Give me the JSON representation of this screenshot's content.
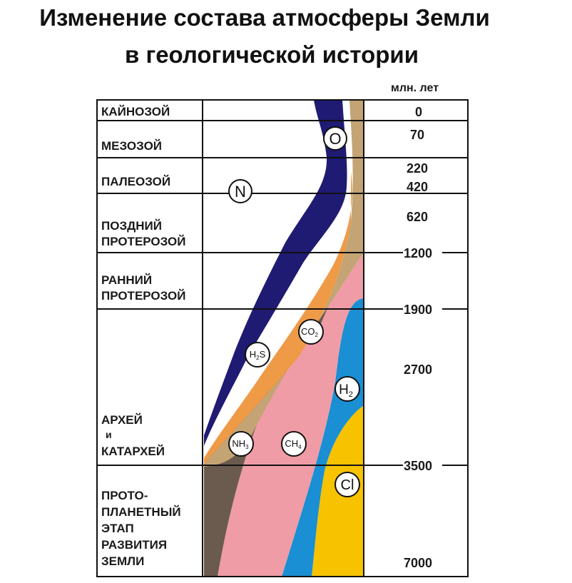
{
  "title": {
    "line1": "Изменение состава атмосферы Земли",
    "line2": "в геологической истории"
  },
  "unit_label": "млн. лет",
  "eras": [
    {
      "id": "kainozoi",
      "lines": [
        "КАЙНОЗОЙ"
      ]
    },
    {
      "id": "mezozoi",
      "lines": [
        "МЕЗОЗОЙ"
      ]
    },
    {
      "id": "paleozoi",
      "lines": [
        "ПАЛЕОЗОЙ"
      ]
    },
    {
      "id": "late-proterozoic",
      "lines": [
        "ПОЗДНИЙ",
        "ПРОТЕРОЗОЙ"
      ]
    },
    {
      "id": "early-proterozoic",
      "lines": [
        "РАННИЙ",
        "ПРОТЕРОЗОЙ"
      ]
    },
    {
      "id": "archean",
      "lines": [
        "АРХЕЙ",
        "и",
        "КАТАРХЕЙ"
      ]
    },
    {
      "id": "protoplanetary",
      "lines": [
        "ПРОТО-",
        "ПЛАНЕТНЫЙ",
        "ЭТАП",
        "РАЗВИТИЯ",
        "ЗЕМЛИ"
      ]
    }
  ],
  "ages": [
    "0",
    "70",
    "220",
    "420",
    "620",
    "1200",
    "1900",
    "2700",
    "3500",
    "7000"
  ],
  "gases": [
    {
      "id": "o",
      "label": "O",
      "sub": "",
      "color": "#1f1a72"
    },
    {
      "id": "n",
      "label": "N",
      "sub": "",
      "color": "#ffffff"
    },
    {
      "id": "co2",
      "label": "CO",
      "sub": "2",
      "color": "#c4a474"
    },
    {
      "id": "h2s",
      "label": "H",
      "sub": "2",
      "tail": "S",
      "color": "#ef9a46"
    },
    {
      "id": "h2",
      "label": "H",
      "sub": "2",
      "color": "#1a8fd3"
    },
    {
      "id": "nh3",
      "label": "NH",
      "sub": "3",
      "color": "#6b5b4e"
    },
    {
      "id": "ch4",
      "label": "CH",
      "sub": "4",
      "color": "#ef9ca6"
    },
    {
      "id": "cl",
      "label": "Cl",
      "sub": "",
      "color": "#f7c200"
    }
  ]
}
